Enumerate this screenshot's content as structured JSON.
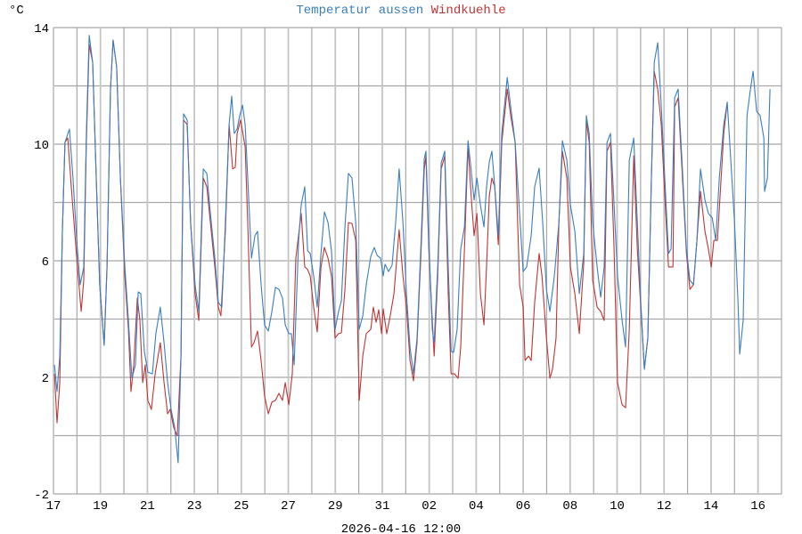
{
  "chart_data": {
    "type": "line",
    "title_parts": [
      {
        "text": "Temperatur aussen",
        "color": "#3a7ebf"
      },
      {
        "text": "Windkuehle",
        "color": "#c03535"
      }
    ],
    "ylabel": "°C",
    "xlabel": "2026-04-16 12:00",
    "x_unit": "days since 17th 00:00",
    "xlim": [
      0,
      31
    ],
    "ylim": [
      -2,
      14
    ],
    "ygrid_step": 2,
    "yticks": [
      14,
      10,
      6,
      2,
      -2
    ],
    "xtick_labels": [
      "17",
      "19",
      "21",
      "23",
      "25",
      "27",
      "29",
      "31",
      "02",
      "04",
      "06",
      "08",
      "10",
      "12",
      "14",
      "16"
    ],
    "grid": true,
    "series": [
      {
        "name": "Temperatur aussen",
        "color": "#3a7ebf",
        "x": [
          0.04,
          0.15,
          0.27,
          0.38,
          0.49,
          0.68,
          0.83,
          0.99,
          1.14,
          1.29,
          1.4,
          1.52,
          1.67,
          1.82,
          1.97,
          2.16,
          2.28,
          2.43,
          2.54,
          2.69,
          2.85,
          3.04,
          3.19,
          3.34,
          3.49,
          3.61,
          3.72,
          3.87,
          4.02,
          4.21,
          4.36,
          4.55,
          4.71,
          4.86,
          5.01,
          5.16,
          5.31,
          5.43,
          5.54,
          5.69,
          5.84,
          6.03,
          6.19,
          6.38,
          6.53,
          6.68,
          6.87,
          7.02,
          7.17,
          7.32,
          7.48,
          7.59,
          7.7,
          7.82,
          7.93,
          8.05,
          8.16,
          8.27,
          8.43,
          8.58,
          8.69,
          8.84,
          8.99,
          9.15,
          9.3,
          9.45,
          9.6,
          9.75,
          9.87,
          10.02,
          10.13,
          10.25,
          10.44,
          10.55,
          10.7,
          10.82,
          10.93,
          11.08,
          11.23,
          11.39,
          11.54,
          11.69,
          11.84,
          11.99,
          12.14,
          12.26,
          12.41,
          12.56,
          12.71,
          12.87,
          13.02,
          13.17,
          13.32,
          13.51,
          13.66,
          13.78,
          13.93,
          14.04,
          14.12,
          14.27,
          14.42,
          14.57,
          14.72,
          14.88,
          15.03,
          15.18,
          15.33,
          15.48,
          15.64,
          15.79,
          15.86,
          15.98,
          16.13,
          16.21,
          16.36,
          16.51,
          16.66,
          16.81,
          16.93,
          17.04,
          17.19,
          17.34,
          17.5,
          17.65,
          17.76,
          17.91,
          18.03,
          18.18,
          18.33,
          18.44,
          18.56,
          18.67,
          18.79,
          18.94,
          19.09,
          19.32,
          19.47,
          19.66,
          19.85,
          20.0,
          20.15,
          20.34,
          20.49,
          20.68,
          20.83,
          20.99,
          21.14,
          21.33,
          21.52,
          21.67,
          21.86,
          22.01,
          22.2,
          22.39,
          22.58,
          22.69,
          22.81,
          22.96,
          23.15,
          23.3,
          23.45,
          23.57,
          23.72,
          23.87,
          24.02,
          24.21,
          24.36,
          24.52,
          24.71,
          24.86,
          25.01,
          25.16,
          25.31,
          25.46,
          25.58,
          25.73,
          25.88,
          26.03,
          26.19,
          26.3,
          26.45,
          26.6,
          26.76,
          26.95,
          27.1,
          27.25,
          27.4,
          27.55,
          27.74,
          27.89,
          28.05,
          28.2,
          28.35,
          28.54,
          28.69,
          28.84,
          29.0,
          29.15,
          29.22,
          29.37,
          29.53,
          29.68,
          29.79,
          29.94,
          30.09,
          30.25,
          30.28,
          30.4,
          30.51
        ],
        "y": [
          2.43,
          1.51,
          2.73,
          7.01,
          10.06,
          10.52,
          8.84,
          6.7,
          5.18,
          5.79,
          10.37,
          13.73,
          12.81,
          8.84,
          5.18,
          3.1,
          5.79,
          11.89,
          13.57,
          12.66,
          8.84,
          5.79,
          3.95,
          1.97,
          2.43,
          4.93,
          4.87,
          2.89,
          2.18,
          2.12,
          3.5,
          4.41,
          3.19,
          1.82,
          0.9,
          0.29,
          -0.93,
          2.73,
          11.04,
          10.83,
          7.31,
          5.18,
          4.26,
          9.15,
          9.0,
          7.62,
          6.09,
          4.57,
          4.41,
          7.31,
          10.67,
          11.65,
          10.37,
          10.52,
          10.98,
          11.34,
          10.67,
          8.84,
          6.09,
          6.86,
          7.01,
          5.18,
          3.8,
          3.59,
          4.26,
          5.09,
          5.02,
          4.72,
          3.8,
          3.5,
          3.5,
          2.43,
          6.7,
          7.92,
          8.54,
          6.34,
          6.25,
          5.48,
          4.41,
          6.25,
          7.68,
          7.31,
          6.34,
          3.65,
          4.26,
          4.63,
          7.16,
          9.0,
          8.84,
          7.31,
          3.65,
          4.11,
          5.18,
          6.15,
          6.46,
          6.18,
          6.09,
          5.48,
          5.88,
          5.63,
          5.85,
          7.31,
          9.15,
          7.31,
          4.87,
          3.04,
          2.12,
          3.35,
          6.4,
          9.51,
          9.76,
          6.7,
          3.65,
          3.19,
          5.79,
          9.36,
          9.76,
          5.79,
          2.89,
          2.86,
          3.65,
          6.4,
          7.16,
          10.12,
          9.3,
          8.08,
          8.84,
          7.92,
          7.16,
          8.54,
          9.39,
          9.76,
          8.54,
          6.86,
          10.37,
          12.29,
          11.28,
          10.06,
          7.62,
          5.63,
          5.79,
          6.86,
          8.54,
          9.18,
          7.31,
          5.02,
          4.26,
          5.48,
          7.31,
          10.12,
          9.45,
          7.92,
          7.01,
          4.87,
          6.25,
          10.98,
          10.37,
          7.31,
          5.79,
          4.75,
          5.79,
          10.06,
          10.37,
          7.92,
          5.48,
          3.95,
          3.04,
          9.45,
          10.21,
          7.31,
          4.57,
          2.28,
          3.35,
          8.84,
          12.81,
          13.48,
          11.28,
          8.84,
          6.25,
          6.4,
          11.59,
          11.89,
          9.45,
          6.4,
          5.33,
          5.18,
          6.7,
          9.15,
          8.08,
          7.62,
          7.47,
          6.7,
          8.84,
          10.67,
          11.44,
          9.45,
          7.31,
          4.57,
          2.8,
          3.95,
          10.98,
          11.89,
          12.5,
          11.13,
          10.98,
          10.21,
          8.38,
          8.84,
          11.89
        ]
      },
      {
        "name": "Windkuehle",
        "color": "#c03535",
        "x": [
          0.04,
          0.15,
          0.27,
          0.38,
          0.49,
          0.61,
          0.76,
          0.99,
          1.18,
          1.29,
          1.4,
          1.52,
          1.67,
          1.82,
          1.97,
          2.16,
          2.28,
          2.43,
          2.54,
          2.69,
          2.85,
          3.04,
          3.19,
          3.3,
          3.42,
          3.57,
          3.68,
          3.8,
          3.91,
          4.02,
          4.17,
          4.33,
          4.55,
          4.71,
          4.86,
          4.97,
          5.12,
          5.27,
          5.43,
          5.54,
          5.69,
          5.84,
          6.03,
          6.19,
          6.38,
          6.53,
          6.68,
          6.87,
          7.02,
          7.13,
          7.32,
          7.48,
          7.63,
          7.74,
          7.82,
          7.97,
          8.16,
          8.27,
          8.43,
          8.54,
          8.69,
          8.84,
          8.99,
          9.15,
          9.3,
          9.45,
          9.6,
          9.75,
          9.87,
          10.02,
          10.17,
          10.32,
          10.55,
          10.7,
          10.82,
          10.93,
          11.08,
          11.23,
          11.39,
          11.54,
          11.69,
          11.84,
          11.99,
          12.14,
          12.26,
          12.41,
          12.56,
          12.71,
          12.87,
          13.02,
          13.17,
          13.32,
          13.51,
          13.62,
          13.74,
          13.85,
          13.97,
          14.04,
          14.19,
          14.34,
          14.5,
          14.72,
          14.88,
          15.03,
          15.18,
          15.33,
          15.48,
          15.64,
          15.79,
          15.86,
          15.98,
          16.13,
          16.21,
          16.36,
          16.51,
          16.66,
          16.81,
          16.93,
          17.08,
          17.23,
          17.34,
          17.5,
          17.65,
          17.8,
          17.91,
          18.03,
          18.18,
          18.33,
          18.44,
          18.56,
          18.67,
          18.79,
          18.94,
          19.09,
          19.32,
          19.47,
          19.66,
          19.85,
          20.0,
          20.08,
          20.23,
          20.34,
          20.49,
          20.68,
          20.8,
          20.99,
          21.14,
          21.25,
          21.4,
          21.52,
          21.67,
          21.86,
          22.01,
          22.2,
          22.39,
          22.58,
          22.69,
          22.81,
          22.96,
          23.15,
          23.3,
          23.45,
          23.57,
          23.72,
          23.87,
          24.02,
          24.21,
          24.36,
          24.52,
          24.71,
          24.86,
          25.01,
          25.16,
          25.31,
          25.46,
          25.58,
          25.73,
          25.88,
          26.03,
          26.19,
          26.38,
          26.45,
          26.6,
          26.76,
          26.95,
          27.1,
          27.25,
          27.4,
          27.55,
          27.74,
          27.89,
          28.01,
          28.12,
          28.27,
          28.54,
          28.69
        ],
        "y": [
          2.12,
          0.44,
          1.82,
          7.01,
          10.06,
          10.21,
          8.54,
          6.09,
          4.26,
          5.33,
          10.06,
          13.42,
          12.81,
          8.84,
          5.18,
          3.1,
          5.79,
          11.89,
          13.57,
          12.66,
          8.84,
          5.48,
          3.65,
          1.51,
          2.43,
          4.72,
          3.95,
          1.82,
          2.43,
          1.21,
          0.9,
          2.12,
          3.19,
          1.82,
          0.75,
          0.9,
          0.29,
          -0.01,
          2.73,
          10.83,
          10.67,
          7.31,
          4.87,
          3.95,
          8.84,
          8.54,
          7.31,
          5.79,
          4.41,
          4.11,
          7.01,
          10.67,
          9.15,
          9.21,
          10.37,
          10.83,
          9.91,
          7.31,
          3.04,
          3.19,
          3.59,
          2.58,
          1.36,
          0.75,
          1.15,
          1.21,
          1.45,
          1.21,
          1.82,
          1.06,
          2.12,
          6.09,
          7.62,
          5.79,
          5.7,
          5.48,
          4.41,
          3.56,
          5.79,
          6.46,
          6.09,
          5.48,
          3.35,
          3.5,
          3.53,
          5.02,
          7.31,
          7.28,
          6.7,
          1.21,
          2.73,
          3.5,
          3.65,
          4.41,
          3.89,
          4.32,
          3.5,
          4.35,
          3.5,
          4.11,
          4.87,
          7.07,
          5.48,
          4.41,
          2.58,
          1.88,
          3.19,
          6.09,
          9.15,
          9.6,
          6.4,
          3.95,
          2.73,
          5.48,
          9.15,
          9.6,
          4.87,
          2.12,
          2.12,
          1.97,
          3.04,
          6.4,
          9.91,
          8.08,
          6.86,
          7.62,
          4.87,
          3.8,
          5.79,
          8.23,
          8.84,
          8.54,
          6.55,
          10.06,
          11.89,
          10.98,
          10.06,
          5.18,
          4.41,
          2.58,
          2.73,
          2.58,
          4.57,
          6.25,
          5.48,
          3.35,
          1.97,
          2.28,
          3.35,
          7.31,
          9.76,
          8.84,
          5.79,
          4.87,
          3.5,
          5.94,
          10.83,
          10.06,
          5.33,
          4.41,
          4.26,
          3.95,
          9.76,
          10.06,
          6.4,
          1.82,
          1.06,
          0.96,
          3.65,
          9.6,
          6.4,
          4.41,
          2.28,
          3.35,
          8.84,
          12.5,
          11.89,
          10.67,
          8.23,
          5.79,
          5.79,
          11.28,
          11.59,
          9.15,
          6.25,
          5.02,
          5.18,
          6.7,
          8.38,
          7.01,
          6.4,
          5.79,
          6.7,
          6.7,
          10.37,
          11.44
        ]
      }
    ]
  }
}
